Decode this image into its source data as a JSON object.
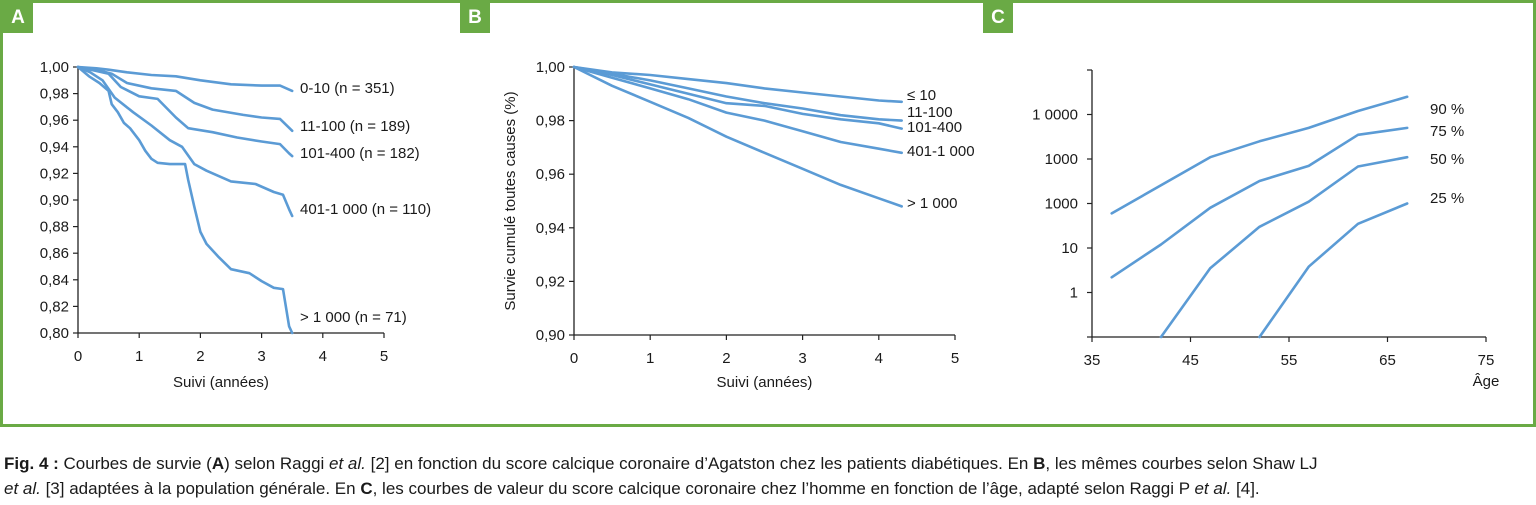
{
  "caption": {
    "fig": "Fig. 4 :",
    "t1": " Courbes de survie (",
    "a": "A",
    "t2": ") selon Raggi ",
    "etal1": "et al.",
    "t3": " [2] en fonction du score calcique coronaire d’Agatston chez les patients diabétiques. En ",
    "b": "B",
    "t4": ", les mêmes courbes selon Shaw LJ ",
    "etal2": "et al.",
    "t5": " [3] adaptées à la population générale. En ",
    "c": "C",
    "t6": ", les courbes de valeur du score calcique coronaire chez l’homme en fonction de l’âge, adapté selon Raggi P ",
    "etal3": "et al.",
    "t7": " [4]."
  },
  "chart_data": [
    {
      "panel": "A",
      "type": "line",
      "line_color": "#5b9bd5",
      "title": "",
      "xlabel": "Suivi (années)",
      "ylabel": "",
      "xlim": [
        0,
        5
      ],
      "ylim": [
        0.8,
        1.0
      ],
      "xticks": [
        "0",
        "1",
        "2",
        "3",
        "4",
        "5"
      ],
      "yticks": [
        "0,80",
        "0,82",
        "0,84",
        "0,86",
        "0,88",
        "0,90",
        "0,92",
        "0,94",
        "0,96",
        "0,98",
        "1,00"
      ],
      "series": [
        {
          "name": "0-10 (n = 351)",
          "x": [
            0,
            0.3,
            0.5,
            0.8,
            1.2,
            1.6,
            2.0,
            2.5,
            3.0,
            3.3,
            3.5
          ],
          "y": [
            1.0,
            0.999,
            0.998,
            0.996,
            0.994,
            0.993,
            0.99,
            0.987,
            0.986,
            0.986,
            0.982
          ]
        },
        {
          "name": "11-100 (n = 189)",
          "x": [
            0,
            0.3,
            0.55,
            0.8,
            1.2,
            1.6,
            1.9,
            2.2,
            2.7,
            3.0,
            3.3,
            3.5
          ],
          "y": [
            1.0,
            0.998,
            0.995,
            0.988,
            0.984,
            0.982,
            0.973,
            0.968,
            0.964,
            0.962,
            0.961,
            0.952
          ]
        },
        {
          "name": "101-400 (n = 182)",
          "x": [
            0,
            0.3,
            0.5,
            0.7,
            1.0,
            1.3,
            1.6,
            1.8,
            2.2,
            2.6,
            3.0,
            3.3,
            3.45,
            3.5
          ],
          "y": [
            1.0,
            0.997,
            0.995,
            0.985,
            0.978,
            0.976,
            0.962,
            0.954,
            0.951,
            0.947,
            0.944,
            0.942,
            0.935,
            0.933
          ]
        },
        {
          "name": "401-1 000 (n = 110)",
          "x": [
            0,
            0.2,
            0.4,
            0.6,
            0.9,
            1.2,
            1.5,
            1.7,
            1.9,
            2.1,
            2.5,
            2.9,
            3.2,
            3.35,
            3.45,
            3.5
          ],
          "y": [
            1.0,
            0.996,
            0.99,
            0.977,
            0.966,
            0.956,
            0.945,
            0.94,
            0.927,
            0.922,
            0.914,
            0.912,
            0.906,
            0.904,
            0.893,
            0.888
          ]
        },
        {
          "name": "> 1 000 (n = 71)",
          "x": [
            0,
            0.18,
            0.35,
            0.5,
            0.55,
            0.65,
            0.75,
            0.85,
            1.0,
            1.1,
            1.2,
            1.3,
            1.5,
            1.75,
            1.8,
            1.9,
            2.0,
            2.1,
            2.2,
            2.3,
            2.5,
            2.8,
            3.0,
            3.2,
            3.35,
            3.45,
            3.5
          ],
          "y": [
            1.0,
            0.993,
            0.988,
            0.982,
            0.972,
            0.966,
            0.958,
            0.954,
            0.945,
            0.937,
            0.931,
            0.928,
            0.927,
            0.927,
            0.915,
            0.895,
            0.876,
            0.867,
            0.862,
            0.857,
            0.848,
            0.845,
            0.839,
            0.834,
            0.833,
            0.805,
            0.8
          ]
        }
      ]
    },
    {
      "panel": "B",
      "type": "line",
      "line_color": "#5b9bd5",
      "title": "",
      "xlabel": "Suivi (années)",
      "ylabel": "Survie cumulé toutes causes (%)",
      "xlim": [
        0,
        5
      ],
      "ylim": [
        0.9,
        1.0
      ],
      "xticks": [
        "0",
        "1",
        "2",
        "3",
        "4",
        "5"
      ],
      "yticks": [
        "0,90",
        "0,92",
        "0,94",
        "0,96",
        "0,98",
        "1,00"
      ],
      "series": [
        {
          "name": "≤ 10",
          "x": [
            0,
            0.5,
            1.0,
            1.5,
            2.0,
            2.5,
            3.0,
            3.5,
            4.0,
            4.3
          ],
          "y": [
            1.0,
            0.998,
            0.997,
            0.9955,
            0.994,
            0.992,
            0.9905,
            0.989,
            0.9875,
            0.987
          ]
        },
        {
          "name": "11-100",
          "x": [
            0,
            0.5,
            1.0,
            1.5,
            2.0,
            2.5,
            3.0,
            3.5,
            4.0,
            4.3
          ],
          "y": [
            1.0,
            0.9975,
            0.995,
            0.992,
            0.989,
            0.9865,
            0.9845,
            0.982,
            0.9805,
            0.98
          ]
        },
        {
          "name": "101-400",
          "x": [
            0,
            0.5,
            1.0,
            1.5,
            2.0,
            2.5,
            3.0,
            3.5,
            4.0,
            4.3
          ],
          "y": [
            1.0,
            0.997,
            0.9935,
            0.99,
            0.9865,
            0.9855,
            0.9825,
            0.9805,
            0.979,
            0.977
          ]
        },
        {
          "name": "401-1 000",
          "x": [
            0,
            0.5,
            1.0,
            1.5,
            2.0,
            2.5,
            3.0,
            3.5,
            4.0,
            4.3
          ],
          "y": [
            1.0,
            0.996,
            0.992,
            0.988,
            0.983,
            0.98,
            0.976,
            0.972,
            0.9695,
            0.968
          ]
        },
        {
          "name": "> 1 000",
          "x": [
            0,
            0.5,
            1.0,
            1.5,
            2.0,
            2.5,
            3.0,
            3.5,
            4.0,
            4.3
          ],
          "y": [
            1.0,
            0.993,
            0.987,
            0.981,
            0.974,
            0.968,
            0.962,
            0.956,
            0.951,
            0.948
          ]
        }
      ]
    },
    {
      "panel": "C",
      "type": "line",
      "line_color": "#5b9bd5",
      "title": "",
      "xlabel": "Âge",
      "ylabel": "",
      "x_scale": "linear",
      "y_scale": "log",
      "xlim": [
        35,
        75
      ],
      "ylim": [
        0.1,
        100000
      ],
      "xticks": [
        "35",
        "45",
        "55",
        "65",
        "75"
      ],
      "ytick_labels": [
        "1",
        "10",
        "1000",
        "1000",
        "1 0000"
      ],
      "series": [
        {
          "name": "90 %",
          "x": [
            37,
            47,
            52,
            57,
            62,
            67
          ],
          "y": [
            60,
            1100,
            2500,
            5000,
            12000,
            25000
          ]
        },
        {
          "name": "75 %",
          "x": [
            37,
            42,
            47,
            52,
            57,
            62,
            67
          ],
          "y": [
            2.2,
            12,
            80,
            320,
            700,
            3500,
            5000
          ]
        },
        {
          "name": "50 %",
          "x": [
            42,
            47,
            52,
            57,
            62,
            67
          ],
          "y": [
            0.1,
            3.5,
            30,
            110,
            680,
            1100
          ]
        },
        {
          "name": "25 %",
          "x": [
            52,
            57,
            62,
            67
          ],
          "y": [
            0.1,
            3.8,
            35,
            100
          ]
        }
      ]
    }
  ]
}
